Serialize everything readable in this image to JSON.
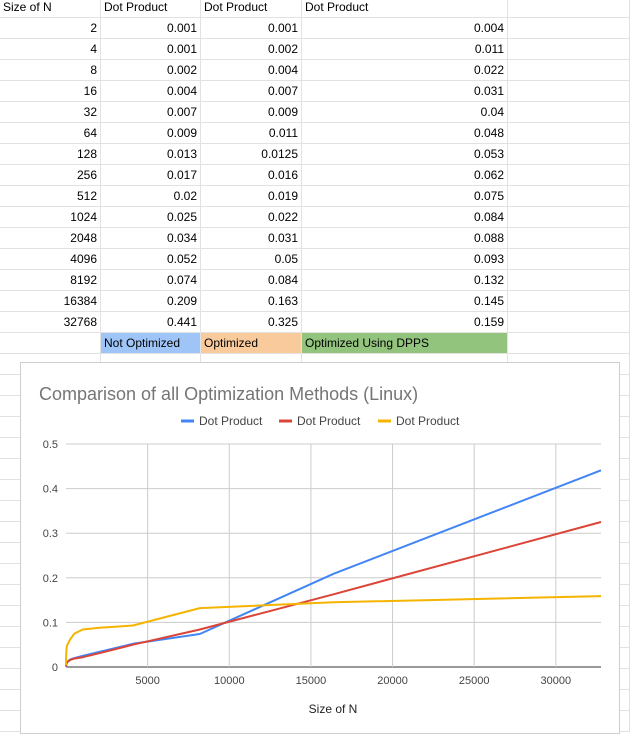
{
  "sheet": {
    "headers": [
      "Size of N",
      "Dot Product",
      "Dot Product",
      "Dot Product"
    ],
    "rows": [
      [
        "2",
        "0.001",
        "0.001",
        "0.004"
      ],
      [
        "4",
        "0.001",
        "0.002",
        "0.011"
      ],
      [
        "8",
        "0.002",
        "0.004",
        "0.022"
      ],
      [
        "16",
        "0.004",
        "0.007",
        "0.031"
      ],
      [
        "32",
        "0.007",
        "0.009",
        "0.04"
      ],
      [
        "64",
        "0.009",
        "0.011",
        "0.048"
      ],
      [
        "128",
        "0.013",
        "0.0125",
        "0.053"
      ],
      [
        "256",
        "0.017",
        "0.016",
        "0.062"
      ],
      [
        "512",
        "0.02",
        "0.019",
        "0.075"
      ],
      [
        "1024",
        "0.025",
        "0.022",
        "0.084"
      ],
      [
        "2048",
        "0.034",
        "0.031",
        "0.088"
      ],
      [
        "4096",
        "0.052",
        "0.05",
        "0.093"
      ],
      [
        "8192",
        "0.074",
        "0.084",
        "0.132"
      ],
      [
        "16384",
        "0.209",
        "0.163",
        "0.145"
      ],
      [
        "32768",
        "0.441",
        "0.325",
        "0.159"
      ]
    ],
    "labels": [
      {
        "text": "Not Optimized",
        "color": "#9fc5f8"
      },
      {
        "text": "Optimized",
        "color": "#f9cb9c"
      },
      {
        "text": "Optimized Using DPPS",
        "color": "#93c47d"
      }
    ]
  },
  "chart_data": {
    "type": "line",
    "title": "Comparison of all Optimization Methods (Linux)",
    "xlabel": "Size of N",
    "ylabel": "",
    "x": [
      2,
      4,
      8,
      16,
      32,
      64,
      128,
      256,
      512,
      1024,
      2048,
      4096,
      8192,
      16384,
      32768
    ],
    "series": [
      {
        "name": "Dot Product",
        "color": "#4285f4",
        "values": [
          0.001,
          0.001,
          0.002,
          0.004,
          0.007,
          0.009,
          0.013,
          0.017,
          0.02,
          0.025,
          0.034,
          0.052,
          0.074,
          0.209,
          0.441
        ]
      },
      {
        "name": "Dot Product",
        "color": "#db4437",
        "values": [
          0.001,
          0.002,
          0.004,
          0.007,
          0.009,
          0.011,
          0.0125,
          0.016,
          0.019,
          0.022,
          0.031,
          0.05,
          0.084,
          0.163,
          0.325
        ]
      },
      {
        "name": "Dot Product",
        "color": "#f4b400",
        "values": [
          0.004,
          0.011,
          0.022,
          0.031,
          0.04,
          0.048,
          0.053,
          0.062,
          0.075,
          0.084,
          0.088,
          0.093,
          0.132,
          0.145,
          0.159
        ]
      }
    ],
    "xlim": [
      0,
      32768
    ],
    "ylim": [
      0,
      0.5
    ],
    "xticks": [
      5000,
      10000,
      15000,
      20000,
      25000,
      30000
    ],
    "xtick_labels": [
      "5000",
      "10000",
      "15000",
      "20000",
      "25000",
      "30000"
    ],
    "yticks": [
      0,
      0.1,
      0.2,
      0.3,
      0.4,
      0.5
    ],
    "ytick_labels": [
      "0",
      "0.1",
      "0.2",
      "0.3",
      "0.4",
      "0.5"
    ],
    "grid": true,
    "legend_position": "top"
  }
}
